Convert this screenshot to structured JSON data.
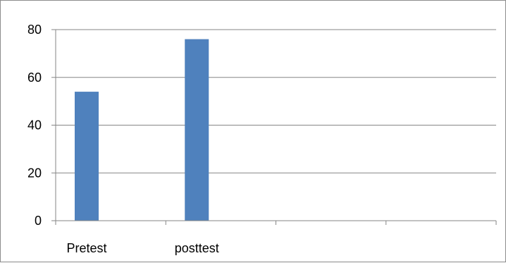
{
  "chart_data": {
    "type": "bar",
    "categories": [
      "Pretest",
      "posttest",
      "",
      ""
    ],
    "values": [
      54,
      76,
      null,
      null
    ],
    "yticks": [
      0,
      20,
      40,
      60,
      80
    ],
    "ylim": [
      0,
      80
    ],
    "grid": true,
    "legend": "none",
    "bar_color": "#4f81bd",
    "gridline_color": "#868686",
    "axis_color": "#868686"
  }
}
